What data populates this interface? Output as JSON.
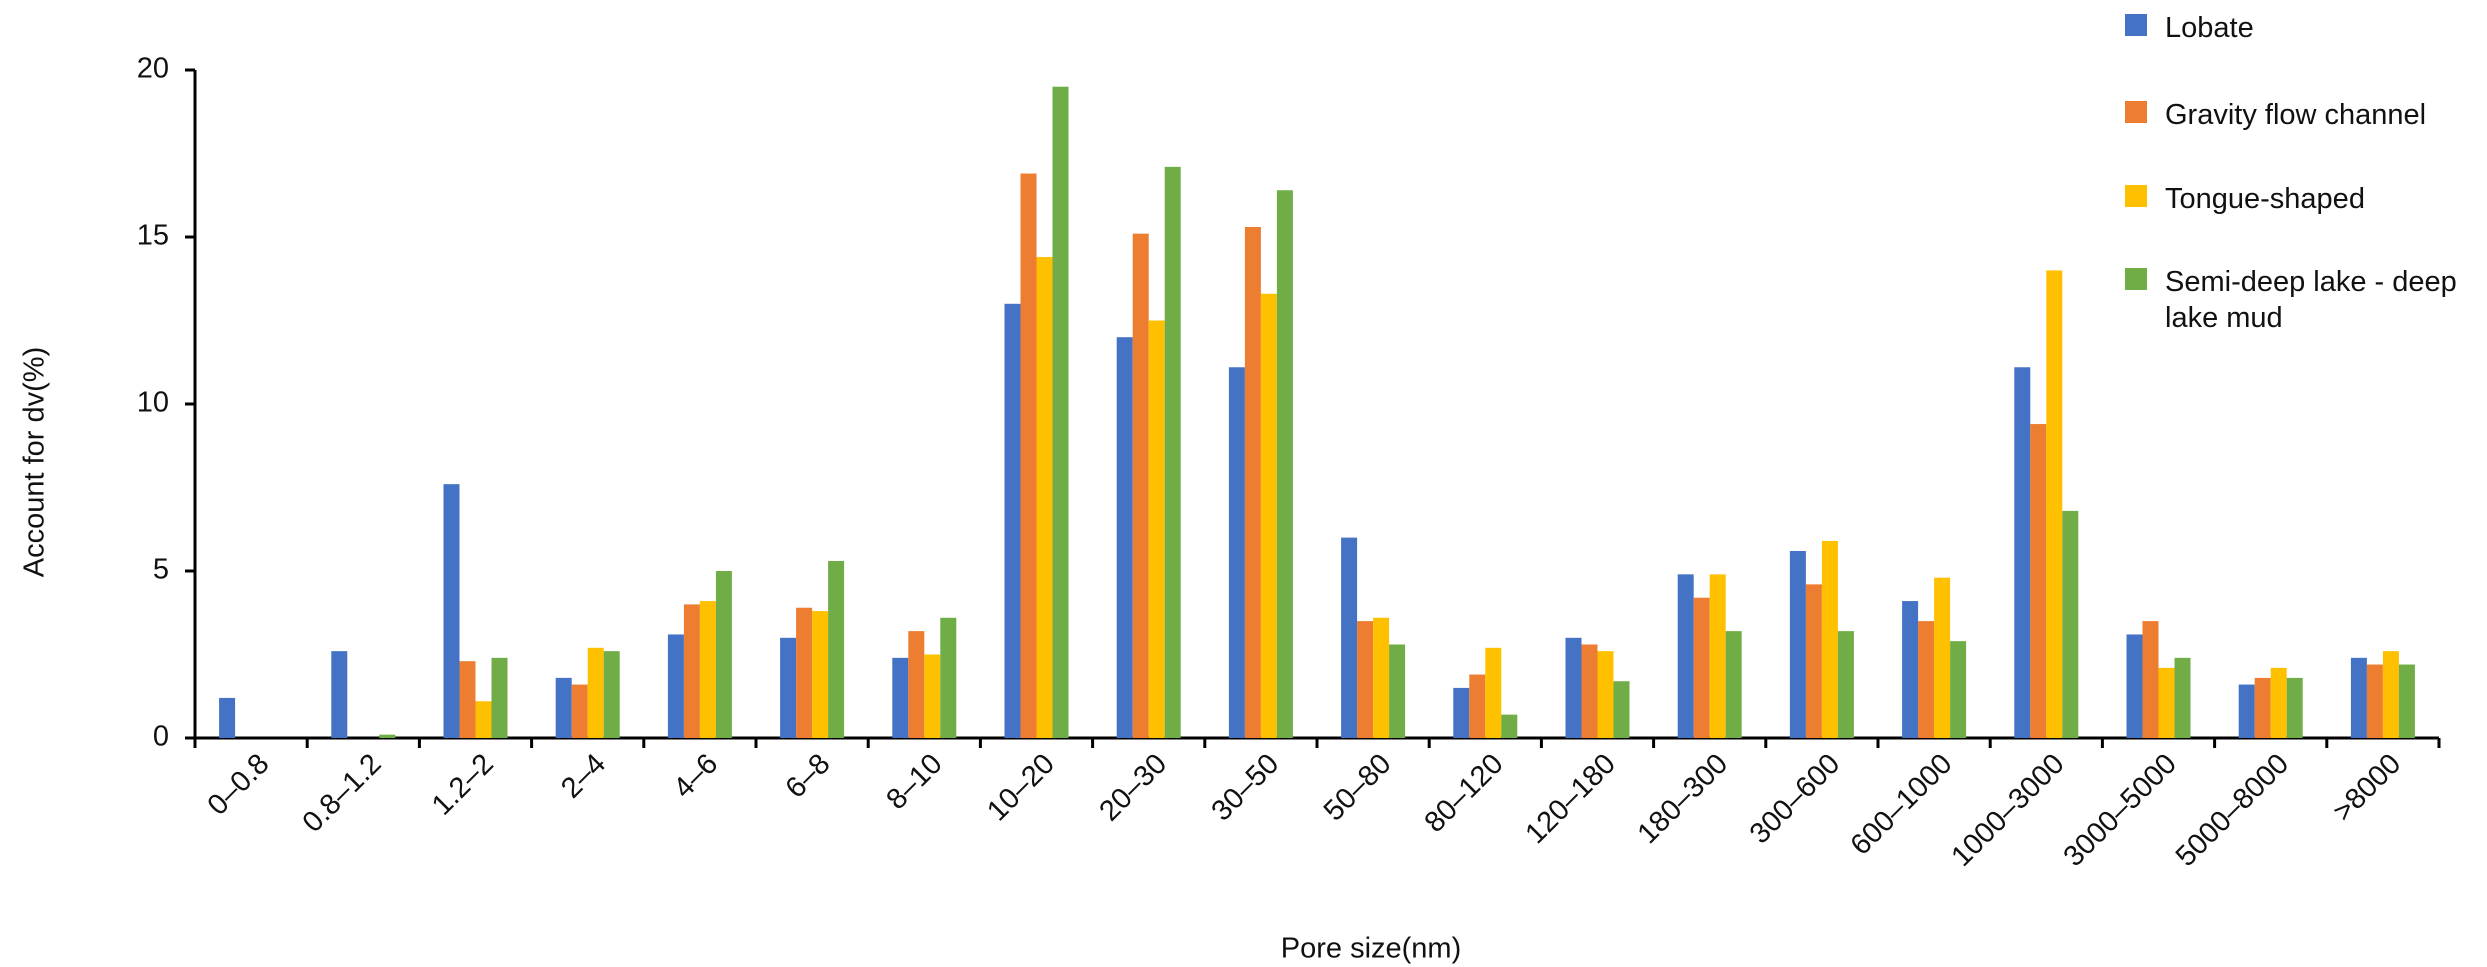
{
  "chart_data": {
    "type": "bar",
    "x_label": "Pore size(nm)",
    "y_label": "Account for dv(%)",
    "categories": [
      "0–0.8",
      "0.8–1.2",
      "1.2–2",
      "2–4",
      "4–6",
      "6–8",
      "8–10",
      "10–20",
      "20–30",
      "30–50",
      "50–80",
      "80–120",
      "120–180",
      "180–300",
      "300–600",
      "600–1000",
      "1000–3000",
      "3000–5000",
      "5000–8000",
      ">8000"
    ],
    "series": [
      {
        "name": "Lobate",
        "color": "#4472c4",
        "values": [
          1.2,
          2.6,
          7.6,
          1.8,
          3.1,
          3.0,
          2.4,
          13.0,
          12.0,
          11.1,
          6.0,
          1.5,
          3.0,
          4.9,
          5.6,
          4.1,
          11.1,
          3.1,
          1.6,
          2.4
        ]
      },
      {
        "name": "Gravity flow channel",
        "color": "#ed7d31",
        "values": [
          null,
          null,
          2.3,
          1.6,
          4.0,
          3.9,
          3.2,
          16.9,
          15.1,
          15.3,
          3.5,
          1.9,
          2.8,
          4.2,
          4.6,
          3.5,
          9.4,
          3.5,
          1.8,
          2.2
        ]
      },
      {
        "name": "Tongue-shaped",
        "color": "#ffc000",
        "values": [
          null,
          null,
          1.1,
          2.7,
          4.1,
          3.8,
          2.5,
          14.4,
          12.5,
          13.3,
          3.6,
          2.7,
          2.6,
          4.9,
          5.9,
          4.8,
          14.0,
          2.1,
          2.1,
          2.6
        ]
      },
      {
        "name": "Semi-deep lake - deep lake mud",
        "color": "#70ad47",
        "values": [
          null,
          0.1,
          2.4,
          2.6,
          5.0,
          5.3,
          3.6,
          19.5,
          17.1,
          16.4,
          2.8,
          0.7,
          1.7,
          3.2,
          3.2,
          2.9,
          6.8,
          2.4,
          1.8,
          2.2
        ]
      }
    ],
    "ylim": [
      0,
      20
    ],
    "yticks": [
      0,
      5,
      10,
      15,
      20
    ],
    "grid": false
  }
}
